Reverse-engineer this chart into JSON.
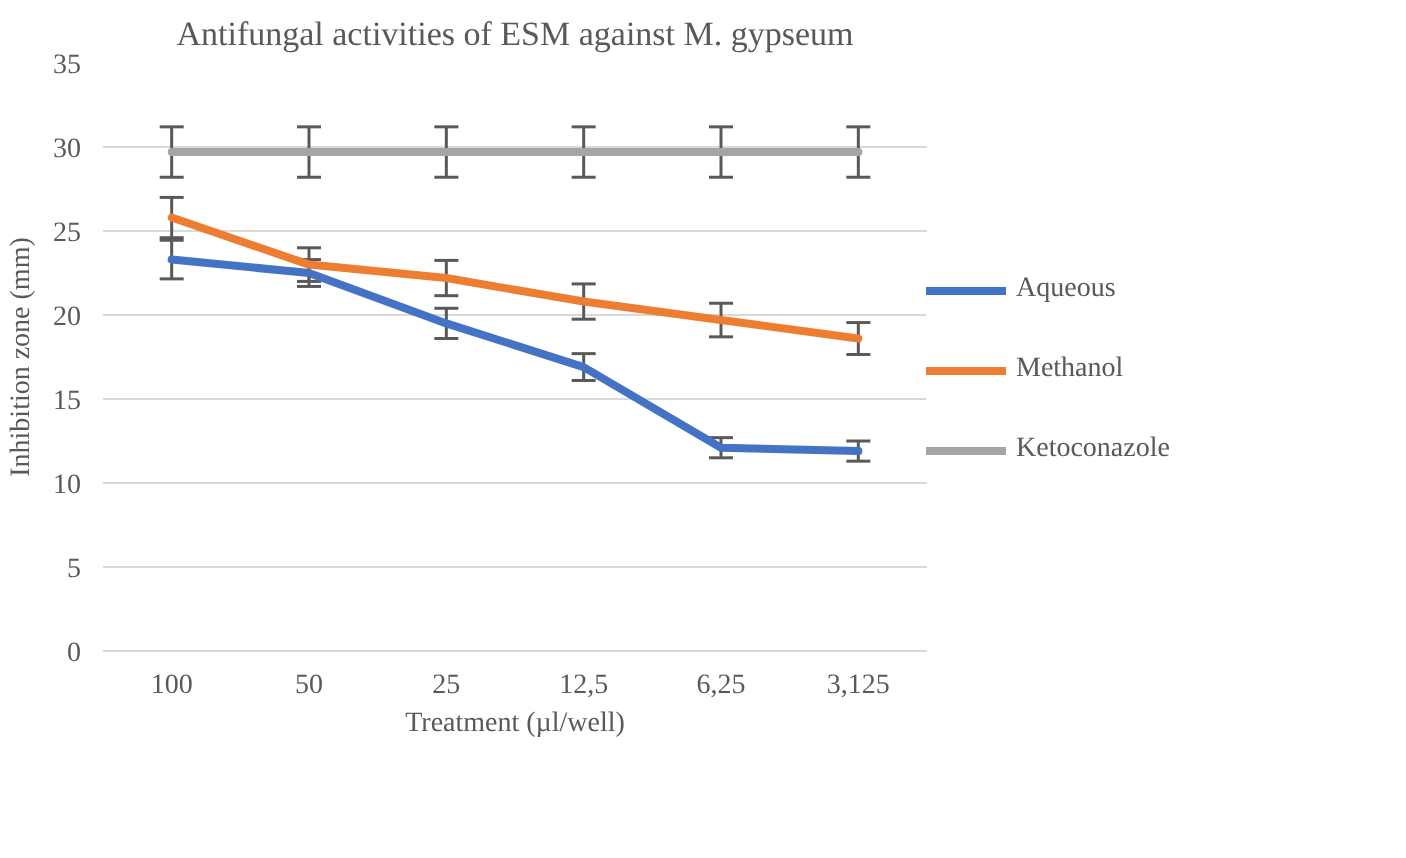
{
  "chart_data": {
    "type": "line",
    "title": "Antifungal activities of ESM against M. gypseum",
    "xlabel": "Treatment (µl/well)",
    "ylabel": "Inhibition zone (mm)",
    "categories": [
      "100",
      "50",
      "25",
      "12,5",
      "6,25",
      "3,125"
    ],
    "series": [
      {
        "name": "Aqueous",
        "color": "#4472c4",
        "values": [
          23.3,
          22.5,
          19.5,
          16.9,
          12.1,
          11.9
        ],
        "errors": [
          1.15,
          0.8,
          0.9,
          0.8,
          0.6,
          0.6
        ]
      },
      {
        "name": "Methanol",
        "color": "#ed7d31",
        "values": [
          25.8,
          23.0,
          22.2,
          20.8,
          19.7,
          18.6
        ],
        "errors": [
          1.2,
          1.0,
          1.05,
          1.05,
          1.0,
          0.95
        ]
      },
      {
        "name": "Ketoconazole",
        "color": "#a5a5a5",
        "values": [
          29.7,
          29.7,
          29.7,
          29.7,
          29.7,
          29.7
        ],
        "errors": [
          1.5,
          1.5,
          1.5,
          1.5,
          1.5,
          1.5
        ]
      }
    ],
    "ylim": [
      0,
      35
    ],
    "yticks": [
      0,
      5,
      10,
      15,
      20,
      25,
      30,
      35
    ],
    "grid": "y",
    "legend": "right",
    "marker": "none",
    "line_style": "solid"
  }
}
